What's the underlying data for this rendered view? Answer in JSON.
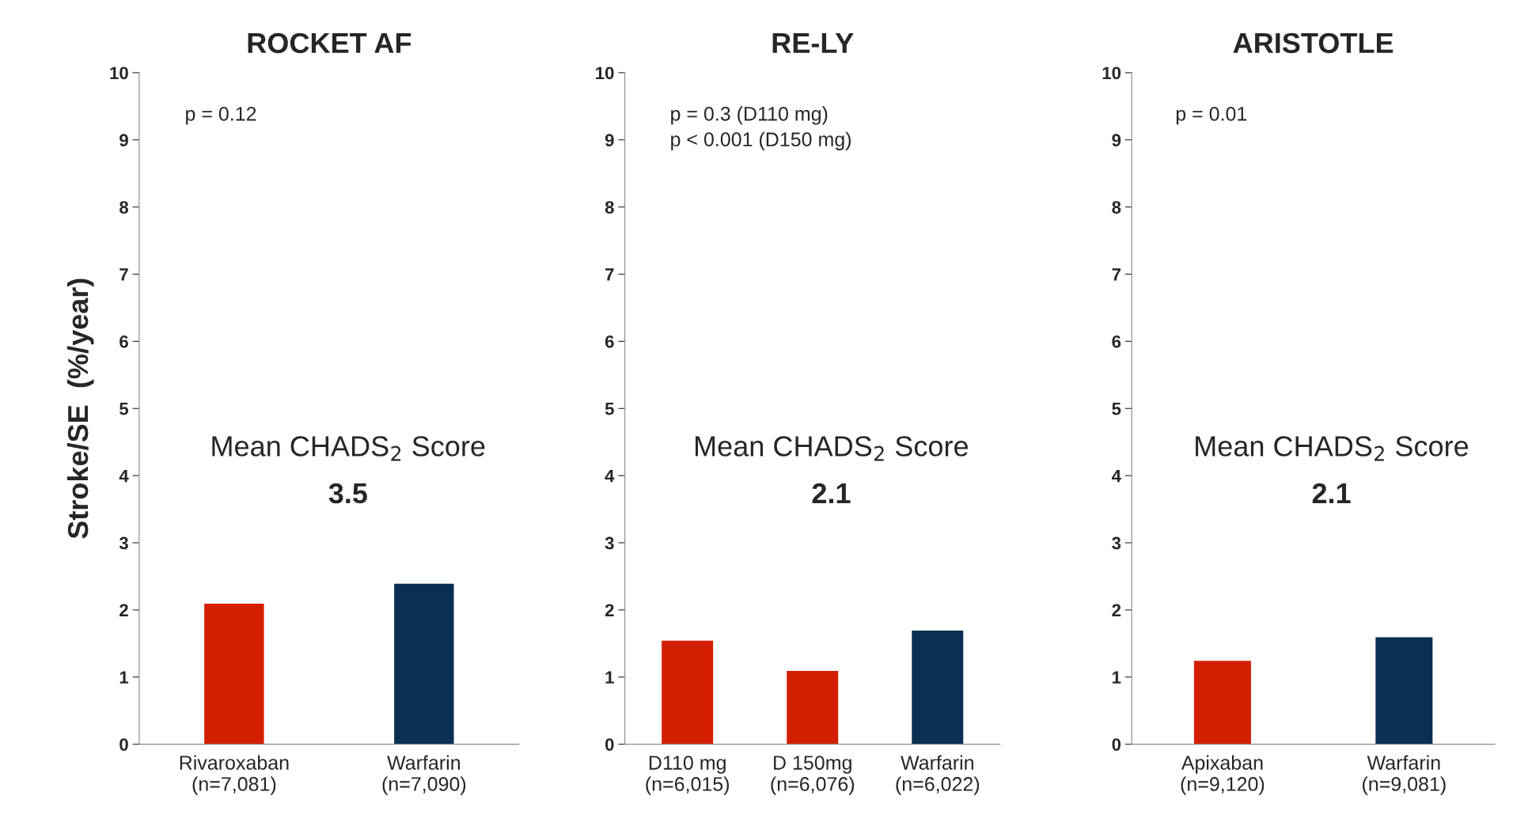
{
  "chart_data": [
    {
      "type": "bar",
      "title": "ROCKET AF",
      "ylabel": "Stroke/SE  (%/year)",
      "categories": [
        "Rivaroxaban\n(n=7,081)",
        "Warfarin\n(n=7,090)"
      ],
      "values": [
        2.1,
        2.4
      ],
      "colors": [
        "#d41e00",
        "#0a2f52"
      ],
      "ylim": [
        0,
        10
      ],
      "yticks": [
        0,
        1,
        2,
        3,
        4,
        5,
        6,
        7,
        8,
        9,
        10
      ],
      "grid": false,
      "legend": false,
      "annotations": [
        "p = 0.12",
        "Mean CHADS$_{2}$ Score",
        "3.5"
      ]
    },
    {
      "type": "bar",
      "title": "RE-LY",
      "categories": [
        "D110 mg\n(n=6,015)",
        "D 150mg\n(n=6,076)",
        "Warfarin\n(n=6,022)"
      ],
      "values": [
        1.55,
        1.1,
        1.7
      ],
      "colors": [
        "#d41e00",
        "#d41e00",
        "#0a2f52"
      ],
      "ylim": [
        0,
        10
      ],
      "yticks": [
        0,
        1,
        2,
        3,
        4,
        5,
        6,
        7,
        8,
        9,
        10
      ],
      "grid": false,
      "legend": false,
      "annotations": [
        "p = 0.3 (D110 mg)\np < 0.001 (D150 mg)",
        "Mean CHADS$_{2}$ Score",
        "2.1"
      ]
    },
    {
      "type": "bar",
      "title": "ARISTOTLE",
      "categories": [
        "Apixaban\n(n=9,120)",
        "Warfarin\n(n=9,081)"
      ],
      "values": [
        1.25,
        1.6
      ],
      "colors": [
        "#d41e00",
        "#0a2f52"
      ],
      "ylim": [
        0,
        10
      ],
      "yticks": [
        0,
        1,
        2,
        3,
        4,
        5,
        6,
        7,
        8,
        9,
        10
      ],
      "grid": false,
      "legend": false,
      "annotations": [
        "p = 0.01",
        "Mean CHADS$_{2}$ Score",
        "2.1"
      ]
    }
  ]
}
